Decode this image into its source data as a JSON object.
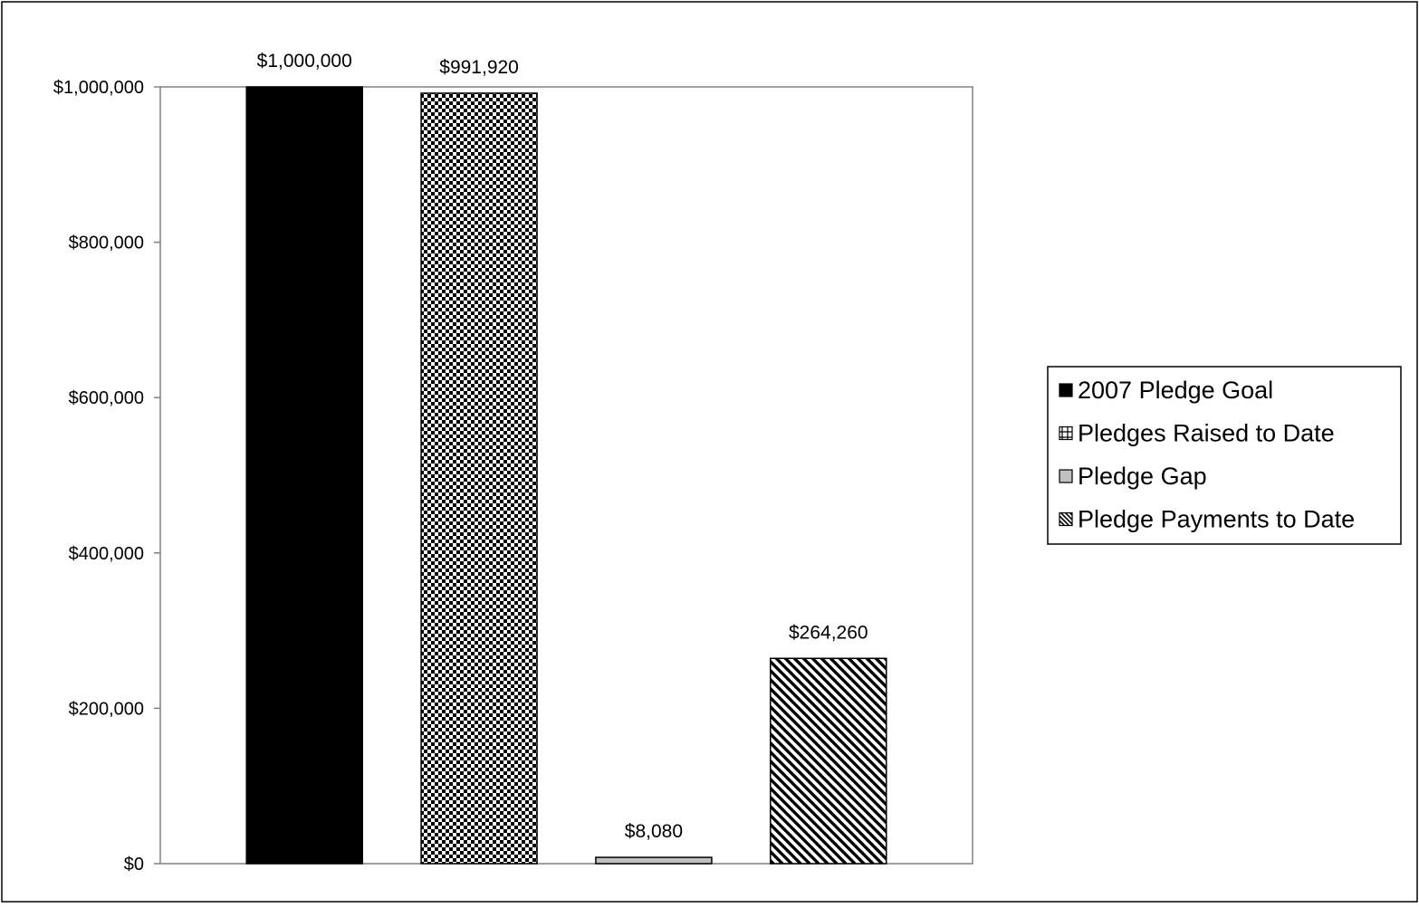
{
  "chart_data": {
    "type": "bar",
    "title": "",
    "xlabel": "",
    "ylabel": "",
    "ylim": [
      0,
      1000000
    ],
    "yticks": [
      0,
      200000,
      400000,
      600000,
      800000,
      1000000
    ],
    "ytick_labels": [
      "$0",
      "$200,000",
      "$400,000",
      "$600,000",
      "$800,000",
      "$1,000,000"
    ],
    "grid": false,
    "legend_position": "right",
    "series": [
      {
        "name": "2007 Pledge Goal",
        "value": 1000000,
        "label": "$1,000,000",
        "fill": "solid",
        "color": "#000000"
      },
      {
        "name": "Pledges Raised to Date",
        "value": 991920,
        "label": "$991,920",
        "fill": "checker",
        "color": "#000000"
      },
      {
        "name": "Pledge Gap",
        "value": 8080,
        "label": "$8,080",
        "fill": "solid",
        "color": "#c0c0c0"
      },
      {
        "name": "Pledge Payments to Date",
        "value": 264260,
        "label": "$264,260",
        "fill": "diagonal",
        "color": "#000000"
      }
    ]
  }
}
